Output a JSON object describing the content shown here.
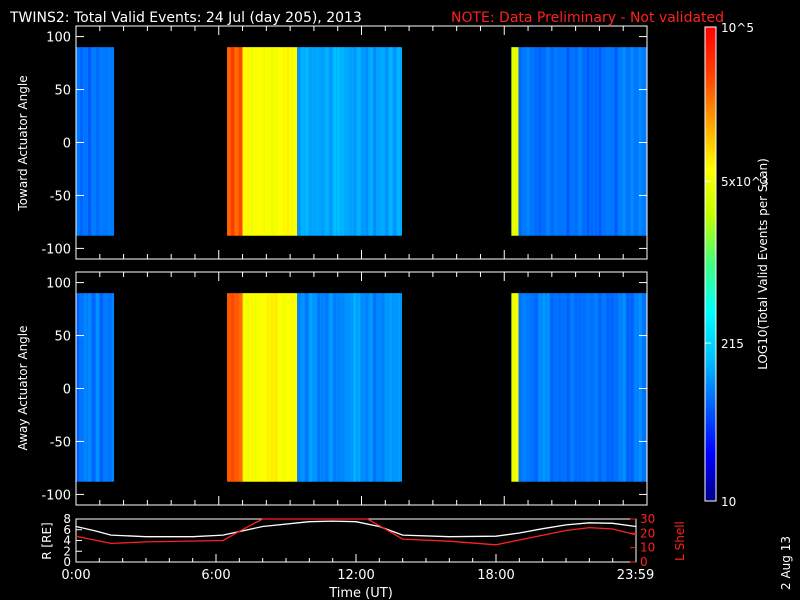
{
  "title": "TWINS2: Total Valid Events: 24 Jul (day 205), 2013",
  "note": "NOTE: Data Preliminary - Not validated",
  "date_stamp": "2 Aug 13",
  "colorbar": {
    "label": "LOG10(Total Valid Events per Scan)",
    "ticks": [
      "10",
      "215",
      "5x10^3",
      "10^5"
    ],
    "colors": [
      "#00008a",
      "#0000ff",
      "#0060ff",
      "#00c0ff",
      "#00ffff",
      "#40ff80",
      "#c0ff00",
      "#ffff00",
      "#ffa000",
      "#ff4000",
      "#ff0000"
    ]
  },
  "panel1": {
    "ylabel": "Toward Actuator Angle"
  },
  "panel2": {
    "ylabel": "Away Actuator Angle"
  },
  "panel3": {
    "ylabel_left": "R [RE]",
    "ylabel_right": "L Shell",
    "xlabel": "Time (UT)"
  },
  "chart_data": [
    {
      "type": "heatmap",
      "title": "TWINS2: Total Valid Events: 24 Jul (day 205), 2013",
      "ylabel": "Toward Actuator Angle",
      "xlim": [
        0,
        24
      ],
      "ylim": [
        -110,
        110
      ],
      "yticks": [
        -100,
        -50,
        0,
        50,
        100
      ],
      "scale": "log",
      "zlim": [
        10,
        100000
      ],
      "data_extent_y": [
        -88,
        90
      ],
      "segments": [
        {
          "t_start": 0.0,
          "t_end": 1.6,
          "log10_level": 1.9
        },
        {
          "t_start": 6.35,
          "t_end": 7.0,
          "log10_level": 4.5
        },
        {
          "t_start": 7.0,
          "t_end": 9.3,
          "log10_level": 3.8
        },
        {
          "t_start": 9.3,
          "t_end": 13.7,
          "log10_level": 2.1
        },
        {
          "t_start": 18.3,
          "t_end": 18.6,
          "log10_level": 3.7
        },
        {
          "t_start": 18.6,
          "t_end": 24.0,
          "log10_level": 1.9
        }
      ]
    },
    {
      "type": "heatmap",
      "ylabel": "Away Actuator Angle",
      "xlim": [
        0,
        24
      ],
      "ylim": [
        -110,
        110
      ],
      "yticks": [
        -100,
        -50,
        0,
        50,
        100
      ],
      "scale": "log",
      "zlim": [
        10,
        100000
      ],
      "data_extent_y": [
        -88,
        90
      ],
      "segments": [
        {
          "t_start": 0.0,
          "t_end": 1.6,
          "log10_level": 1.9
        },
        {
          "t_start": 6.35,
          "t_end": 7.0,
          "log10_level": 4.5
        },
        {
          "t_start": 7.0,
          "t_end": 9.3,
          "log10_level": 3.8
        },
        {
          "t_start": 9.3,
          "t_end": 13.7,
          "log10_level": 2.0
        },
        {
          "t_start": 18.3,
          "t_end": 18.6,
          "log10_level": 3.7
        },
        {
          "t_start": 18.6,
          "t_end": 24.0,
          "log10_level": 1.9
        }
      ]
    },
    {
      "type": "line",
      "xlabel": "Time (UT)",
      "ylabel": "R [RE]",
      "ylabel_right": "L Shell",
      "xlim": [
        0,
        24
      ],
      "xtick_labels": [
        "0:00",
        "6:00",
        "12:00",
        "18:00",
        "23:59"
      ],
      "xtick_values": [
        0,
        6,
        12,
        18,
        23.98
      ],
      "ylim_left": [
        0,
        8
      ],
      "yticks_left": [
        0,
        2,
        4,
        6,
        8
      ],
      "ylim_right": [
        0,
        30
      ],
      "yticks_right": [
        0,
        10,
        20,
        30
      ],
      "series": [
        {
          "axis": "left",
          "color": "#ffffff",
          "x": [
            0,
            0.8,
            1.5,
            3,
            5,
            6.3,
            8,
            10,
            11,
            12,
            13,
            14,
            16,
            18,
            19,
            20,
            21,
            22,
            23,
            24
          ],
          "y": [
            6.6,
            5.8,
            5.0,
            4.7,
            4.7,
            5.0,
            6.6,
            7.5,
            7.6,
            7.5,
            6.6,
            5.0,
            4.7,
            4.8,
            5.4,
            6.2,
            6.9,
            7.3,
            7.2,
            6.6
          ]
        },
        {
          "axis": "right",
          "color": "#ff2020",
          "x": [
            0,
            1.5,
            3,
            6.3,
            7.4,
            8.0,
            12.5,
            14,
            16,
            18,
            19.5,
            21,
            22,
            23,
            24
          ],
          "y": [
            18,
            13,
            14,
            15,
            25,
            30,
            30,
            16,
            14.5,
            12,
            17,
            22,
            24,
            23,
            19
          ]
        }
      ]
    }
  ]
}
